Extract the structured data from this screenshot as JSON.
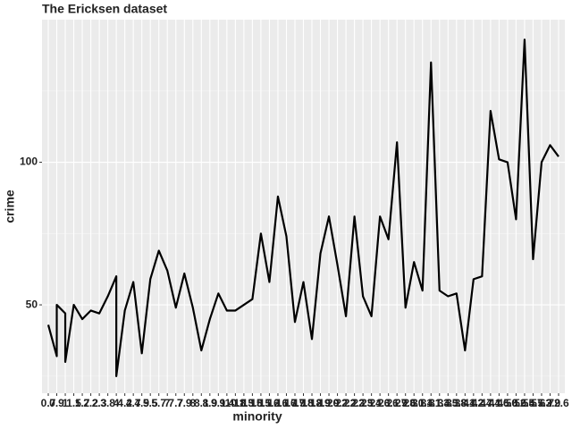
{
  "chart_data": {
    "type": "line",
    "title": "The Ericksen dataset",
    "x_label": "minority",
    "y_label": "crime",
    "categories": [
      0.7,
      0.9,
      1,
      1.5,
      1.7,
      2.2,
      2.3,
      3.8,
      4,
      4.2,
      4.7,
      4.9,
      5.5,
      5.7,
      7,
      7.7,
      7.9,
      8,
      8.1,
      8.9,
      9.1,
      9.4,
      10.8,
      11.5,
      13.8,
      15.1,
      15.2,
      16.1,
      16.7,
      16.9,
      17.5,
      18.2,
      18.9,
      19.9,
      20.2,
      22.2,
      22.3,
      22.5,
      23.1,
      24.3,
      26.1,
      26.9,
      27.6,
      28.1,
      30.4,
      31.1,
      31.4,
      33.3,
      35.8,
      38.4,
      41.2,
      42.7,
      44.1,
      44.5,
      46.8,
      50.6,
      52.4,
      55.5,
      57.2,
      63.9,
      72.6
    ],
    "series": [
      {
        "color": "#000000",
        "x": [
          0.7,
          0.9,
          0.9,
          1,
          1,
          1.5,
          1.7,
          2.2,
          2.3,
          3.8,
          4,
          4,
          4.2,
          4.7,
          4.9,
          5.5,
          5.7,
          7,
          7.7,
          7.9,
          8,
          8.1,
          8.9,
          9.1,
          9.4,
          10.8,
          11.5,
          13.8,
          15.1,
          15.2,
          16.1,
          16.7,
          16.9,
          17.5,
          18.2,
          18.9,
          19.9,
          20.2,
          22.2,
          22.3,
          22.5,
          23.1,
          24.3,
          26.1,
          26.9,
          27.6,
          28.1,
          30.4,
          31.1,
          31.4,
          33.3,
          35.8,
          38.4,
          41.2,
          42.7,
          44.1,
          44.5,
          46.8,
          50.6,
          52.4,
          55.5,
          57.2,
          63.9,
          72.6
        ],
        "values": [
          43,
          32,
          50,
          47,
          30,
          50,
          45,
          48,
          47,
          53,
          60,
          25,
          48,
          58,
          33,
          59,
          69,
          62,
          49,
          61,
          49,
          34,
          45,
          54,
          48,
          48,
          50,
          52,
          75,
          58,
          88,
          74,
          44,
          58,
          38,
          68,
          81,
          64,
          46,
          81,
          53,
          46,
          81,
          73,
          107,
          49,
          65,
          55,
          135,
          55,
          53,
          54,
          34,
          59,
          60,
          118,
          101,
          100,
          80,
          143,
          66,
          100,
          106,
          102
        ]
      }
    ],
    "ylim": [
      19,
      150
    ],
    "yticks": [
      50,
      100
    ],
    "grid": true
  }
}
